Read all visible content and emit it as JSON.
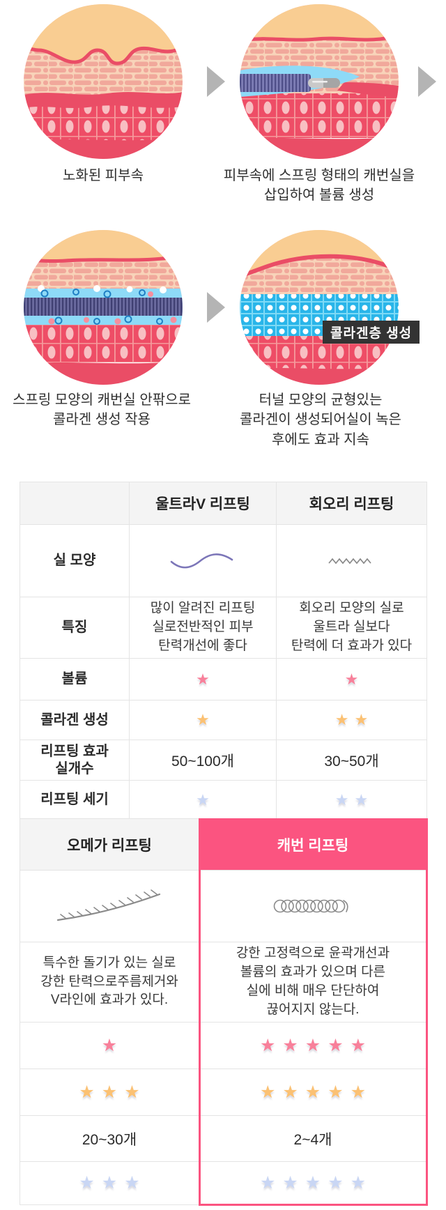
{
  "steps": {
    "captions": [
      "노화된 피부속",
      "피부속에 스프링 형태의 캐번실을\n삽입하여 볼륨 생성",
      "스프링 모양의 캐번실 안팎으로\n콜라겐 생성 작용",
      "터널 모양의 균형있는\n콜라겐이 생성되어실이 녹은\n후에도 효과 지속"
    ],
    "badge": "콜라겐층 생성",
    "illustrations": [
      "aged-skin",
      "thread-insertion",
      "collagen-forming-around-thread",
      "collagen-tunnel-layer"
    ]
  },
  "t1": {
    "h1": "울트라V 리프팅",
    "h2": "회오리 리프팅",
    "r_shape": "실 모양",
    "r_feat": "특징",
    "r_vol": "볼륨",
    "r_col": "콜라겐 생성",
    "r_cnt": "리프팅 효과\n실개수",
    "r_str": "리프팅 세기",
    "feat1": "많이 알려진 리프팅\n실로전반적인 피부\n탄력개선에 좋다",
    "feat2": "회오리 모양의 실로\n울트라 실보다\n탄력에 더 효과가 있다",
    "cnt1": "50~100개",
    "cnt2": "30~50개",
    "vol": [
      1,
      1
    ],
    "col": [
      1,
      2
    ],
    "str": [
      1,
      2
    ]
  },
  "t2": {
    "h1": "오메가 리프팅",
    "h2": "캐번 리프팅",
    "feat1": "특수한 돌기가 있는 실로\n강한 탄력으로주름제거와\nV라인에 효과가 있다.",
    "feat2": "강한 고정력으로 윤곽개선과\n볼륨의 효과가 있으며 다른\n실에 비해 매우 단단하여\n끊어지지 않는다.",
    "cnt1": "20~30개",
    "cnt2": "2~4개",
    "vol": [
      1,
      5
    ],
    "col": [
      3,
      5
    ],
    "str": [
      3,
      5
    ]
  },
  "colors": {
    "highlight_pink": "#fb5480",
    "star_pink": "#f8809a",
    "star_orange": "#fbc173",
    "star_blue": "#c9d6f4",
    "badge_bg": "#333333",
    "header_gray": "#f4f4f4",
    "skin_epidermis": "#f9cd92",
    "skin_red": "#ea4d66",
    "collagen_blue": "#8edaf7",
    "mesh_cyan": "#29b5e9",
    "arrow_gray": "#b4b4b4"
  },
  "icons": {
    "t1_shapes": [
      "wave-thread",
      "zigzag-thread"
    ],
    "t2_shapes": [
      "barbed-thread",
      "coil-thread"
    ]
  }
}
